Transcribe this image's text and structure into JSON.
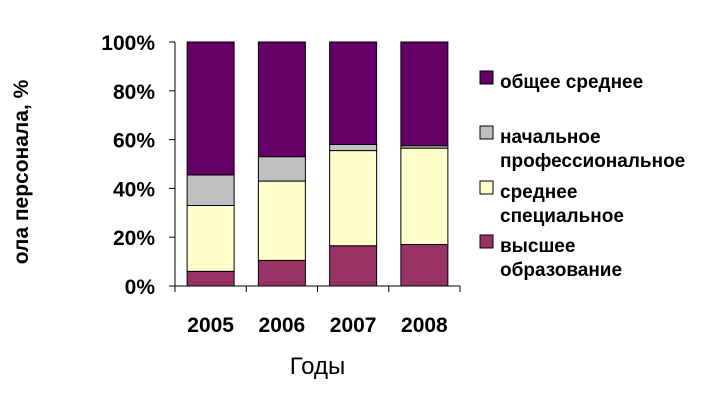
{
  "chart_data": {
    "type": "bar",
    "stacked": true,
    "percent": true,
    "categories": [
      "2005",
      "2006",
      "2007",
      "2008"
    ],
    "series": [
      {
        "name": "высшее образование",
        "color": "#993366",
        "values": [
          6,
          10.5,
          16.5,
          17
        ]
      },
      {
        "name": "среднее специальное",
        "color": "#FFFFCC",
        "values": [
          27,
          32.5,
          39,
          39.5
        ]
      },
      {
        "name": "начальное профессиональное",
        "color": "#C0C0C0",
        "values": [
          12.5,
          10,
          2.5,
          1
        ]
      },
      {
        "name": "общее среднее",
        "color": "#660066",
        "values": [
          54.5,
          47,
          42,
          42.5
        ]
      }
    ],
    "yticks": [
      "0%",
      "20%",
      "40%",
      "60%",
      "80%",
      "100%"
    ],
    "ylim": [
      0,
      100
    ],
    "xlabel": "Годы",
    "ylabel": "ола персонала, %",
    "grid": false,
    "legend": {
      "position": "right",
      "order": [
        "общее среднее",
        "начальное профессиональное",
        "среднее специальное",
        "высшее образование"
      ],
      "lines": {
        "общее среднее": [
          "общее среднее"
        ],
        "начальное профессиональное": [
          "начальное",
          "профессиональное"
        ],
        "среднее специальное": [
          "среднее",
          "специальное"
        ],
        "высшее образование": [
          "высшее",
          "образование"
        ]
      }
    }
  }
}
